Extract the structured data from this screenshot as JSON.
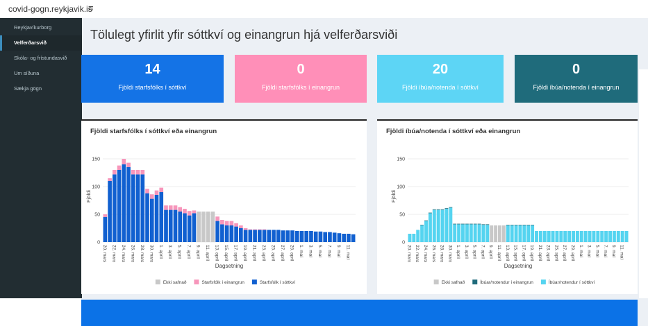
{
  "header": {
    "site": "covid-gogn.reykjavik.is",
    "menu_icon": "≡"
  },
  "sidebar": {
    "items": [
      "Reykjavíkurborg",
      "Velferðarsvið",
      "Skóla- og frístundasvið",
      "Um síðuna",
      "Sækja gögn"
    ]
  },
  "page_title": "Tölulegt yfirlit yfir sóttkví og einangrun hjá velferðarsviði",
  "value_boxes": [
    {
      "value": 14,
      "label": "Fjöldi starfsfólks í sóttkví"
    },
    {
      "value": 0,
      "label": "Fjöldi starfsfólks í einangrun"
    },
    {
      "value": 20,
      "label": "Fjöldi íbúa/notenda í sóttkví"
    },
    {
      "value": 0,
      "label": "Fjöldi íbúa/notenda í einangrun"
    }
  ],
  "chart_data": [
    {
      "type": "stacked_bar",
      "title": "Fjöldi starfsfólks í sóttkví eða einangrun",
      "x_label": "Dagsetning",
      "y_label": "Fjöldi",
      "categories": [
        "20. mars",
        null,
        "22. mars",
        null,
        "24. mars",
        null,
        "26. mars",
        null,
        "28. mars",
        null,
        "30. mars",
        null,
        "1. apríl",
        null,
        "3. apríl",
        null,
        "5. apríl",
        null,
        "7. apríl",
        null,
        "9. apríl",
        null,
        "11. apríl",
        null,
        "13. apríl",
        null,
        "15. apríl",
        null,
        "17. apríl",
        null,
        "19. apríl",
        null,
        "21. apríl",
        null,
        "23. apríl",
        null,
        "25. apríl",
        null,
        "27. apríl",
        null,
        "29. apríl",
        null,
        "1. maí",
        null,
        "3. maí",
        null,
        "5. maí",
        null,
        "7. maí",
        null,
        "9. maí",
        null,
        "11. maí",
        null
      ],
      "series": [
        {
          "name": "Ekki safnað",
          "color": "#c8c8c8",
          "values": [
            0,
            0,
            0,
            0,
            0,
            0,
            0,
            0,
            0,
            0,
            0,
            0,
            0,
            0,
            0,
            0,
            0,
            0,
            0,
            0,
            55,
            55,
            55,
            55,
            0,
            0,
            0,
            0,
            0,
            0,
            0,
            0,
            0,
            0,
            0,
            0,
            0,
            0,
            0,
            0,
            0,
            0,
            0,
            0,
            0,
            0,
            0,
            0,
            0,
            0,
            0,
            0,
            0,
            0
          ]
        },
        {
          "name": "Starfsfólk í einangrun",
          "color": "#f796bb",
          "values": [
            5,
            5,
            8,
            8,
            10,
            8,
            8,
            8,
            8,
            8,
            8,
            8,
            8,
            8,
            8,
            8,
            8,
            8,
            8,
            5,
            0,
            0,
            0,
            0,
            8,
            8,
            8,
            8,
            6,
            5,
            3,
            1,
            1,
            1,
            1,
            0,
            0,
            0,
            0,
            0,
            0,
            0,
            0,
            0,
            0,
            0,
            0,
            0,
            0,
            0,
            0,
            0,
            0,
            0
          ]
        },
        {
          "name": "Starfsfólk í sóttkví",
          "color": "#1160d0",
          "values": [
            45,
            110,
            122,
            130,
            140,
            135,
            122,
            122,
            122,
            88,
            78,
            85,
            90,
            58,
            58,
            58,
            55,
            52,
            48,
            52,
            0,
            0,
            0,
            0,
            38,
            32,
            30,
            30,
            28,
            25,
            22,
            22,
            22,
            22,
            22,
            22,
            22,
            22,
            21,
            21,
            21,
            20,
            20,
            20,
            20,
            19,
            19,
            18,
            18,
            17,
            16,
            15,
            15,
            14
          ]
        }
      ],
      "ylim": [
        0,
        165
      ],
      "yticks": [
        0,
        50,
        100,
        150
      ],
      "grid": true
    },
    {
      "type": "stacked_bar",
      "title": "Fjöldi íbúa/notenda í sóttkví eða einangrun",
      "x_label": "Dagsetning",
      "y_label": "Fjöldi",
      "categories": [
        "20. mars",
        null,
        "22. mars",
        null,
        "24. mars",
        null,
        "26. mars",
        null,
        "28. mars",
        null,
        "30. mars",
        null,
        "1. apríl",
        null,
        "3. apríl",
        null,
        "5. apríl",
        null,
        "7. apríl",
        null,
        "9. apríl",
        null,
        "11. apríl",
        null,
        "13. apríl",
        null,
        "15. apríl",
        null,
        "17. apríl",
        null,
        "19. apríl",
        null,
        "21. apríl",
        null,
        "23. apríl",
        null,
        "25. apríl",
        null,
        "27. apríl",
        null,
        "29. apríl",
        null,
        "1. maí",
        null,
        "3. maí",
        null,
        "5. maí",
        null,
        "7. maí",
        null,
        "9. maí",
        null,
        "11. maí",
        null
      ],
      "series": [
        {
          "name": "Ekki safnað",
          "color": "#c8c8c8",
          "values": [
            0,
            0,
            0,
            0,
            0,
            0,
            0,
            0,
            0,
            0,
            0,
            0,
            0,
            0,
            0,
            0,
            0,
            0,
            0,
            0,
            30,
            30,
            30,
            30,
            0,
            0,
            0,
            0,
            0,
            0,
            0,
            0,
            0,
            0,
            0,
            0,
            0,
            0,
            0,
            0,
            0,
            0,
            0,
            0,
            0,
            0,
            0,
            0,
            0,
            0,
            0,
            0,
            0,
            0
          ]
        },
        {
          "name": "Íbúar/notendur í einangrun",
          "color": "#1f6b7b",
          "values": [
            0,
            0,
            0,
            1,
            1,
            1,
            1,
            1,
            1,
            1,
            1,
            1,
            1,
            1,
            1,
            1,
            1,
            1,
            1,
            1,
            0,
            0,
            0,
            0,
            1,
            1,
            1,
            1,
            1,
            1,
            1,
            0,
            0,
            0,
            0,
            0,
            0,
            0,
            0,
            0,
            0,
            0,
            0,
            0,
            0,
            0,
            0,
            0,
            0,
            0,
            0,
            0,
            0,
            0
          ]
        },
        {
          "name": "Íbúar/notendur í sóttkví",
          "color": "#55d4f0",
          "values": [
            15,
            15,
            22,
            30,
            38,
            52,
            58,
            58,
            58,
            60,
            62,
            32,
            32,
            32,
            32,
            32,
            32,
            32,
            31,
            31,
            0,
            0,
            0,
            0,
            30,
            30,
            30,
            30,
            30,
            30,
            30,
            20,
            20,
            20,
            20,
            20,
            20,
            20,
            20,
            20,
            20,
            20,
            20,
            20,
            20,
            20,
            20,
            20,
            20,
            20,
            20,
            20,
            20,
            20
          ]
        }
      ],
      "ylim": [
        0,
        165
      ],
      "yticks": [
        0,
        50,
        100,
        150
      ],
      "grid": true
    }
  ]
}
